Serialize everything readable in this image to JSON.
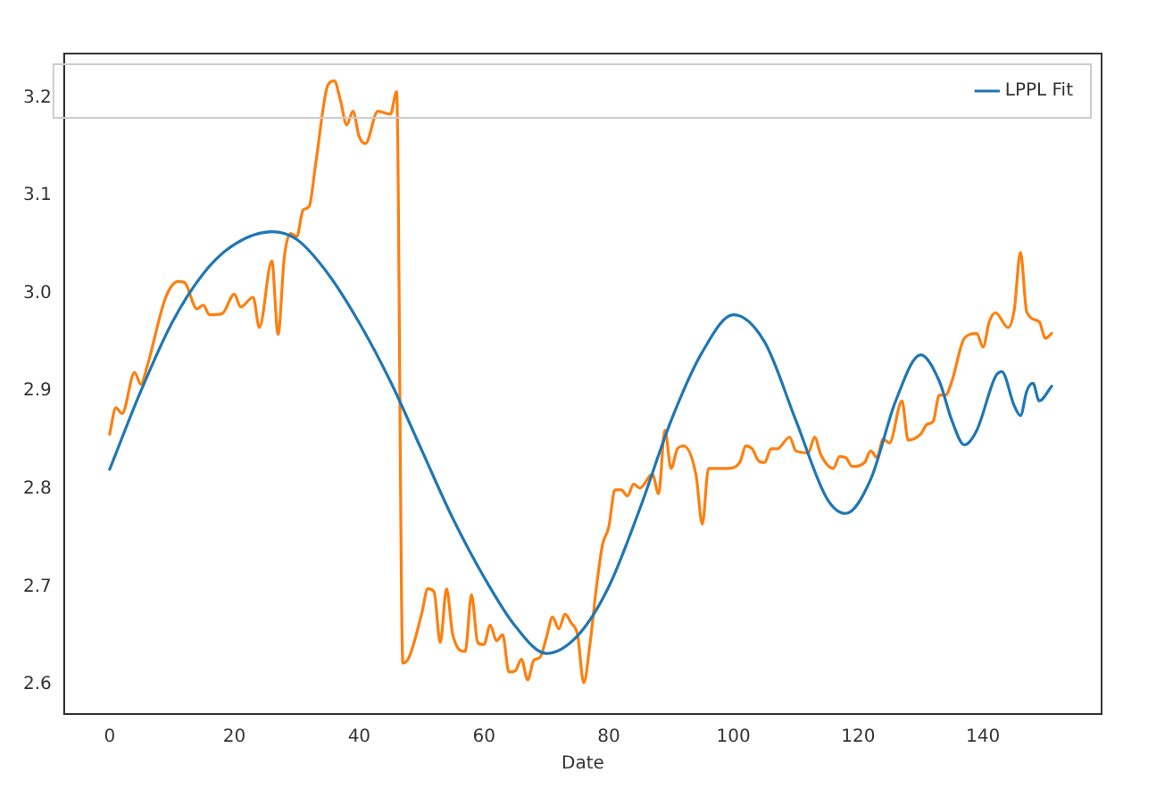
{
  "chart_data": {
    "type": "line",
    "xlabel": "Date",
    "xlim": [
      -7.3,
      159
    ],
    "xticks": [
      0,
      20,
      40,
      60,
      80,
      100,
      120,
      140
    ],
    "ylim": [
      2.57,
      3.245
    ],
    "yticks": [
      2.6,
      2.7,
      2.8,
      2.9,
      {
        "value": 3,
        "label": "3.0"
      },
      3.1,
      3.2
    ],
    "grid": false,
    "legend": "top right",
    "marker": "none",
    "line_style": "solid",
    "series": [
      {
        "name": "LPPL Fit",
        "color": "#1f77b4",
        "x": [
          0,
          5,
          10,
          15,
          20,
          26,
          30,
          35,
          40,
          45,
          50,
          55,
          60,
          65,
          70,
          75,
          80,
          85,
          90,
          95,
          100,
          105,
          110,
          115,
          118,
          122,
          126,
          130,
          133,
          135,
          137,
          139,
          142,
          143,
          145,
          146,
          147,
          148,
          149,
          151
        ],
        "values": [
          2.82,
          2.9,
          2.97,
          3.02,
          3.05,
          3.063,
          3.055,
          3.02,
          2.97,
          2.91,
          2.84,
          2.77,
          2.71,
          2.66,
          2.632,
          2.65,
          2.7,
          2.78,
          2.87,
          2.94,
          2.978,
          2.95,
          2.87,
          2.79,
          2.775,
          2.81,
          2.89,
          2.937,
          2.91,
          2.87,
          2.845,
          2.86,
          2.915,
          2.92,
          2.885,
          2.875,
          2.9,
          2.908,
          2.89,
          2.905
        ]
      },
      {
        "color": "#ff7f0e",
        "x": [
          0,
          1,
          2,
          4,
          5,
          6,
          9,
          11,
          12,
          14,
          15,
          16,
          18,
          20,
          21,
          23,
          24,
          26,
          27,
          28,
          29,
          30,
          31,
          32,
          33,
          35,
          36,
          37,
          38,
          39,
          40,
          41,
          43,
          45,
          46,
          47,
          48,
          50,
          51,
          52,
          53,
          54,
          55,
          57,
          58,
          59,
          60,
          61,
          62,
          63,
          64,
          65,
          66,
          67,
          68,
          69,
          70,
          71,
          72,
          73,
          74,
          75,
          76,
          77,
          78,
          79,
          80,
          81,
          82,
          83,
          84,
          85,
          87,
          88,
          89,
          90,
          91,
          92,
          94,
          95,
          96,
          99,
          101,
          102,
          103,
          104,
          105,
          106,
          107,
          109,
          110,
          112,
          113,
          114,
          116,
          117,
          118,
          119,
          121,
          122,
          123,
          124,
          125,
          127,
          128,
          130,
          131,
          132,
          133,
          134,
          135,
          137,
          139,
          140,
          141,
          142,
          144,
          145,
          146,
          147,
          149,
          150,
          151
        ],
        "values": [
          2.856,
          2.883,
          2.877,
          2.919,
          2.907,
          2.925,
          2.996,
          3.012,
          3.011,
          2.984,
          2.988,
          2.978,
          2.979,
          2.999,
          2.986,
          2.996,
          2.965,
          3.033,
          2.958,
          3.037,
          3.061,
          3.058,
          3.085,
          3.089,
          3.131,
          3.213,
          3.217,
          3.197,
          3.172,
          3.186,
          3.16,
          3.153,
          3.186,
          3.183,
          3.206,
          2.622,
          2.628,
          2.672,
          2.698,
          2.695,
          2.643,
          2.698,
          2.651,
          2.634,
          2.692,
          2.643,
          2.641,
          2.661,
          2.645,
          2.651,
          2.613,
          2.614,
          2.626,
          2.605,
          2.625,
          2.628,
          2.648,
          2.669,
          2.657,
          2.672,
          2.663,
          2.651,
          2.602,
          2.642,
          2.698,
          2.743,
          2.761,
          2.799,
          2.799,
          2.793,
          2.805,
          2.801,
          2.815,
          2.795,
          2.86,
          2.821,
          2.841,
          2.844,
          2.814,
          2.764,
          2.821,
          2.821,
          2.827,
          2.844,
          2.841,
          2.829,
          2.827,
          2.841,
          2.841,
          2.853,
          2.839,
          2.837,
          2.853,
          2.835,
          2.821,
          2.833,
          2.832,
          2.823,
          2.827,
          2.839,
          2.832,
          2.851,
          2.847,
          2.89,
          2.85,
          2.856,
          2.866,
          2.869,
          2.896,
          2.896,
          2.91,
          2.954,
          2.959,
          2.945,
          2.971,
          2.98,
          2.965,
          2.983,
          3.042,
          2.981,
          2.971,
          2.954,
          2.959
        ]
      }
    ]
  }
}
